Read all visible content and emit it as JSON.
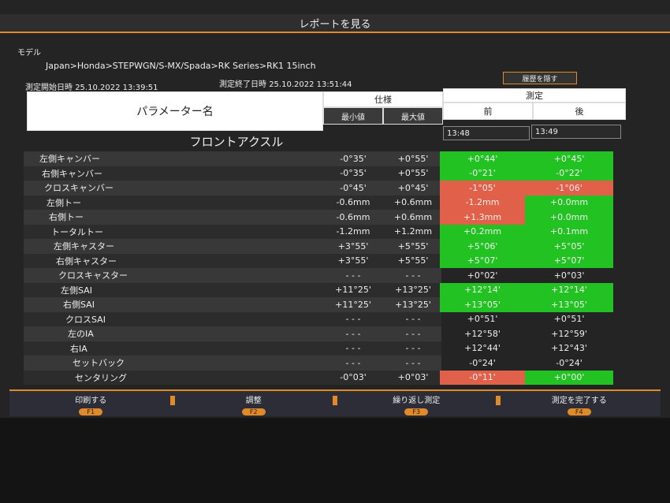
{
  "title": "レポートを見る",
  "model": {
    "label": "モデル",
    "path": "Japan>Honda>STEPWGN/S-MX/Spada>RK Series>RK1 15inch"
  },
  "start": {
    "label": "測定開始日時",
    "value": "25.10.2022 13:39:51"
  },
  "end": {
    "label": "測定終了日時",
    "value": "25.10.2022 13:51:44"
  },
  "hide_history": "履歴を隠す",
  "header": {
    "param": "パラメーター名",
    "spec": "仕様",
    "min": "最小値",
    "max": "最大値",
    "measure": "測定",
    "before": "前",
    "after": "後"
  },
  "times": [
    "13:48",
    "13:49"
  ],
  "section": "フロントアクスル",
  "status_colors": {
    "ok": "#22c222",
    "ng": "#e0604a"
  },
  "rows": [
    {
      "name": "左側キャンバー",
      "min": "-0°35'",
      "max": "+0°55'",
      "before": "+0°44'",
      "after": "+0°45'",
      "before_status": "ok",
      "after_status": "ok"
    },
    {
      "name": "右側キャンバー",
      "min": "-0°35'",
      "max": "+0°55'",
      "before": "-0°21'",
      "after": "-0°22'",
      "before_status": "ok",
      "after_status": "ok"
    },
    {
      "name": "クロスキャンバー",
      "min": "-0°45'",
      "max": "+0°45'",
      "before": "-1°05'",
      "after": "-1°06'",
      "before_status": "ng",
      "after_status": "ng"
    },
    {
      "name": "左側トー",
      "min": "-0.6mm",
      "max": "+0.6mm",
      "before": "-1.2mm",
      "after": "+0.0mm",
      "before_status": "ng",
      "after_status": "ok"
    },
    {
      "name": "右側トー",
      "min": "-0.6mm",
      "max": "+0.6mm",
      "before": "+1.3mm",
      "after": "+0.0mm",
      "before_status": "ng",
      "after_status": "ok"
    },
    {
      "name": "トータルトー",
      "min": "-1.2mm",
      "max": "+1.2mm",
      "before": "+0.2mm",
      "after": "+0.1mm",
      "before_status": "ok",
      "after_status": "ok"
    },
    {
      "name": "左側キャスター",
      "min": "+3°55'",
      "max": "+5°55'",
      "before": "+5°06'",
      "after": "+5°05'",
      "before_status": "ok",
      "after_status": "ok"
    },
    {
      "name": "右側キャスター",
      "min": "+3°55'",
      "max": "+5°55'",
      "before": "+5°07'",
      "after": "+5°07'",
      "before_status": "ok",
      "after_status": "ok"
    },
    {
      "name": "クロスキャスター",
      "min": "- - -",
      "max": "- - -",
      "before": "+0°02'",
      "after": "+0°03'",
      "before_status": "none",
      "after_status": "none"
    },
    {
      "name": "左側SAI",
      "min": "+11°25'",
      "max": "+13°25'",
      "before": "+12°14'",
      "after": "+12°14'",
      "before_status": "ok",
      "after_status": "ok"
    },
    {
      "name": "右側SAI",
      "min": "+11°25'",
      "max": "+13°25'",
      "before": "+13°05'",
      "after": "+13°05'",
      "before_status": "ok",
      "after_status": "ok"
    },
    {
      "name": "クロスSAI",
      "min": "- - -",
      "max": "- - -",
      "before": "+0°51'",
      "after": "+0°51'",
      "before_status": "none",
      "after_status": "none"
    },
    {
      "name": "左のIA",
      "min": "- - -",
      "max": "- - -",
      "before": "+12°58'",
      "after": "+12°59'",
      "before_status": "none",
      "after_status": "none"
    },
    {
      "name": "右IA",
      "min": "- - -",
      "max": "- - -",
      "before": "+12°44'",
      "after": "+12°43'",
      "before_status": "none",
      "after_status": "none"
    },
    {
      "name": "セットバック",
      "min": "- - -",
      "max": "- - -",
      "before": "-0°24'",
      "after": "-0°24'",
      "before_status": "none",
      "after_status": "none"
    },
    {
      "name": "センタリング",
      "min": "-0°03'",
      "max": "+0°03'",
      "before": "-0°11'",
      "after": "+0°00'",
      "before_status": "ng",
      "after_status": "ok"
    }
  ],
  "footer": [
    {
      "label": "印刷する",
      "key": "F1"
    },
    {
      "label": "調整",
      "key": "F2"
    },
    {
      "label": "繰り返し測定",
      "key": "F3"
    },
    {
      "label": "測定を完了する",
      "key": "F4"
    }
  ]
}
